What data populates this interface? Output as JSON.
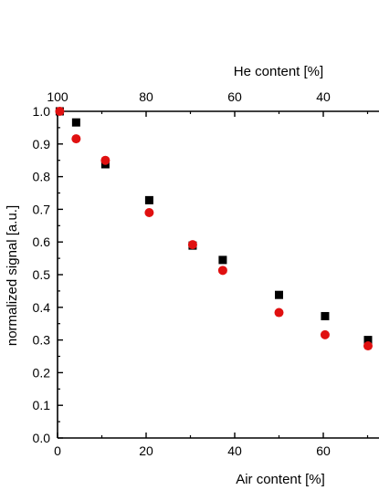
{
  "chart_data": {
    "type": "scatter",
    "xlabel": "Air content [%]",
    "ylabel": "normalized signal [a.u.]",
    "top_xlabel": "He content [%]",
    "xlim": [
      0,
      70
    ],
    "ylim": [
      0.0,
      1.0
    ],
    "x_ticks": [
      "0",
      "20",
      "40",
      "60"
    ],
    "y_ticks": [
      "0.0",
      "0.1",
      "0.2",
      "0.3",
      "0.4",
      "0.5",
      "0.6",
      "0.7",
      "0.8",
      "0.9",
      "1.0"
    ],
    "top_x_ticks": [
      "100",
      "80",
      "60",
      "40"
    ],
    "series": [
      {
        "marker": "square",
        "color": "#000000",
        "points": [
          {
            "x": 0.5,
            "y": 1.0
          },
          {
            "x": 4.2,
            "y": 0.966
          },
          {
            "x": 10.8,
            "y": 0.838
          },
          {
            "x": 20.7,
            "y": 0.728
          },
          {
            "x": 30.5,
            "y": 0.589
          },
          {
            "x": 37.3,
            "y": 0.545
          },
          {
            "x": 50.0,
            "y": 0.438
          },
          {
            "x": 60.4,
            "y": 0.373
          },
          {
            "x": 70.1,
            "y": 0.3
          }
        ]
      },
      {
        "marker": "circle",
        "color": "#e01010",
        "points": [
          {
            "x": 0.5,
            "y": 1.0
          },
          {
            "x": 4.2,
            "y": 0.916
          },
          {
            "x": 10.8,
            "y": 0.85
          },
          {
            "x": 20.7,
            "y": 0.69
          },
          {
            "x": 30.5,
            "y": 0.592
          },
          {
            "x": 37.3,
            "y": 0.513
          },
          {
            "x": 50.0,
            "y": 0.384
          },
          {
            "x": 60.4,
            "y": 0.316
          },
          {
            "x": 70.1,
            "y": 0.282
          }
        ]
      }
    ]
  }
}
